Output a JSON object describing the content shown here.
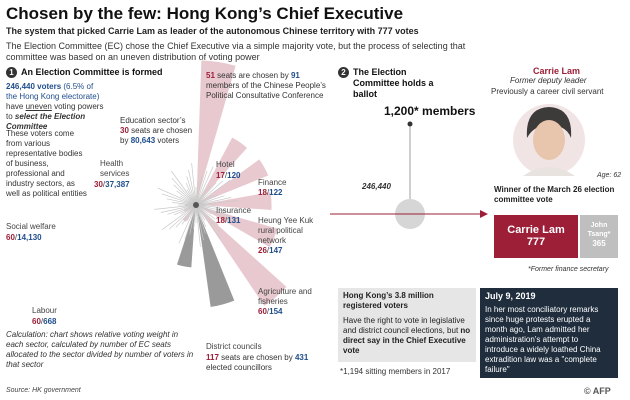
{
  "header": {
    "title": "Chosen by the few: Hong Kong’s Chief Executive",
    "subtitle": "The system that picked Carrie Lam as leader of the autonomous Chinese territory with 777 votes",
    "intro": "The Election Committee (EC) chose the Chief Executive via a simple majority vote, but the process of selecting that committee was based on an uneven distribution of voting power"
  },
  "step1": {
    "number": "1",
    "title": "An Election Committee is formed",
    "voters_value": "246,440 voters",
    "voters_pct": "(6.5% of the Hong Kong electorate)",
    "uneven_pre": "have",
    "uneven_text": "uneven",
    "uneven_post": "voting powers to",
    "select_text": "select the Election Committee",
    "voters_desc": "These voters come from various representative bodies of business, professional and industry sectors, as well as political entities"
  },
  "step2": {
    "number": "2",
    "title": "The Election Committee holds a ballot",
    "members": "1,200* members",
    "voters_small": "246,440"
  },
  "sectors": {
    "npc": {
      "seats": "51",
      "text1": "seats are chosen by",
      "voters": "91",
      "text2": "members of the Chinese People’s Political Consultative Conference"
    },
    "education": {
      "name": "Education sector’s",
      "seats": "30",
      "text1": "seats are chosen",
      "text2": "by",
      "voters": "80,643",
      "text3": "voters"
    },
    "health": {
      "name": "Health services",
      "seats": "30",
      "voters": "37,387"
    },
    "hotel": {
      "name": "Hotel",
      "seats": "17",
      "voters": "120"
    },
    "finance": {
      "name": "Finance",
      "seats": "18",
      "voters": "122"
    },
    "insurance": {
      "name": "Insurance",
      "seats": "18",
      "voters": "131"
    },
    "heung": {
      "name": "Heung Yee Kuk rural political network",
      "seats": "26",
      "voters": "147"
    },
    "social": {
      "name": "Social welfare",
      "seats": "60",
      "voters": "14,130"
    },
    "agriculture": {
      "name": "Agriculture and fisheries",
      "seats": "60",
      "voters": "154"
    },
    "labour": {
      "name": "Labour",
      "seats": "60",
      "voters": "668"
    },
    "district": {
      "name": "District councils",
      "seats": "117",
      "text1": "seats are chosen by",
      "voters": "431",
      "text2": "elected councillors"
    }
  },
  "calculation_note": "Calculation: chart shows relative voting weight in each sector, calculated by number of EC seats allocated to the sector divided by number of voters in that sector",
  "carrie": {
    "name": "Carrie Lam",
    "role1": "Former deputy leader",
    "role2": "Previously a career civil servant",
    "age": "Age: 62",
    "winner_label": "Winner of the March 26 election committee vote",
    "votes_name": "Carrie Lam",
    "votes": "777",
    "rival_name": "John Tsang*",
    "rival_votes": "365",
    "rival_note": "*Former finance secretary"
  },
  "registered": {
    "title": "Hong Kong’s 3.8 million registered voters",
    "text_pre": "Have the right to vote in legislative and district council elections, but",
    "text_bold": "no direct say in the Chief Executive vote"
  },
  "footnote": "*1,194 sitting members in 2017",
  "july": {
    "date": "July 9, 2019",
    "text": "In her most conciliatory remarks since huge protests erupted a month ago, Lam admitted her administration’s attempt to introduce a widely loathed China extradition law was a \"complete failure\""
  },
  "footer": {
    "source": "Source: HK government",
    "credit": "© AFP"
  },
  "colors": {
    "accent": "#9c1e37",
    "blue": "#1f4e8c",
    "pink": "#e8c9cf",
    "gray_wedge": "#9a9a9a",
    "dark": "#1f2d3d"
  },
  "chart_data": {
    "type": "radial-bar",
    "measure": "relative voting weight = EC seats / voters",
    "categories": [
      "CPPCC",
      "Hotel",
      "Finance",
      "Insurance",
      "Heung Yee Kuk",
      "Agriculture and fisheries",
      "District councils",
      "Labour",
      "Social welfare",
      "Health services",
      "Education"
    ],
    "seats": [
      51,
      17,
      18,
      18,
      26,
      60,
      117,
      60,
      60,
      30,
      30
    ],
    "voters": [
      91,
      120,
      122,
      131,
      147,
      154,
      431,
      668,
      14130,
      37387,
      80643
    ],
    "ec_members": 1200,
    "ec_voters": 246440,
    "votes": {
      "Carrie Lam": 777,
      "John Tsang": 365
    }
  }
}
